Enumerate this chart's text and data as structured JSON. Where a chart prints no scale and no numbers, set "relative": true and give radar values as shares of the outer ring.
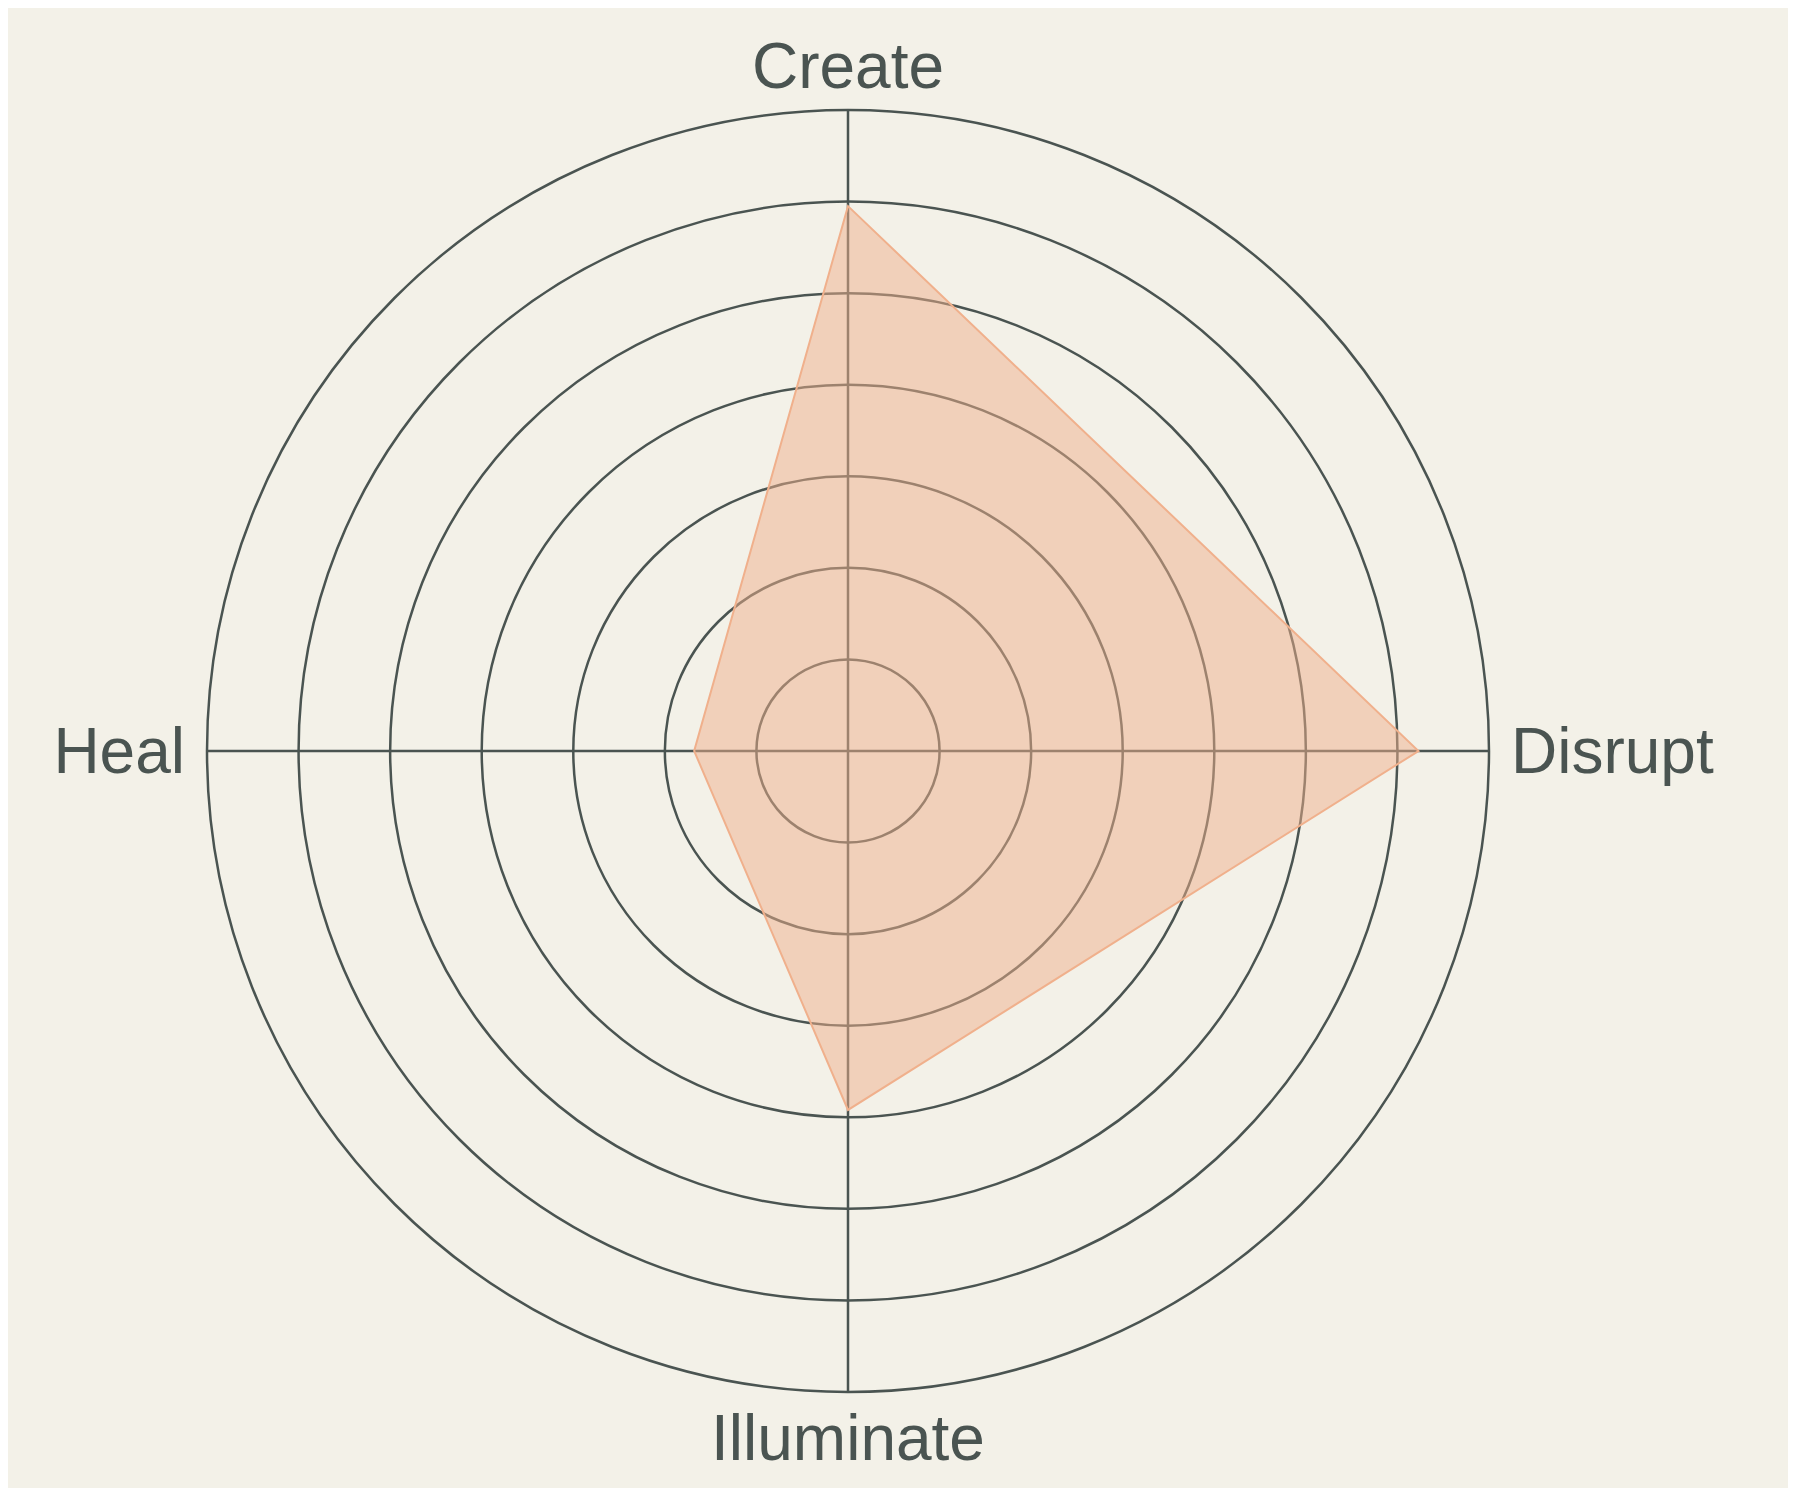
{
  "chart_data": {
    "type": "radar",
    "relative": true,
    "grid": true,
    "categories": [
      "Create",
      "Disrupt",
      "Illuminate",
      "Heal"
    ],
    "series": [
      {
        "color": "#f0b08c",
        "values": [
          0.85,
          0.89,
          0.56,
          0.24
        ]
      }
    ]
  }
}
